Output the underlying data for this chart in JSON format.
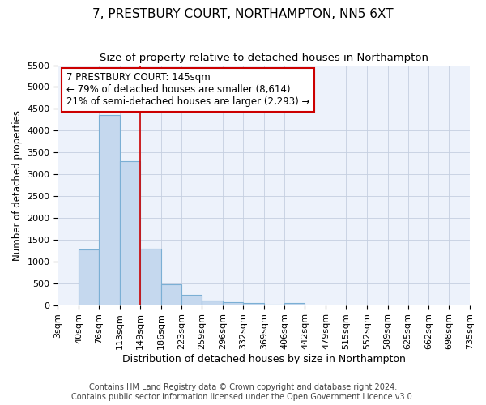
{
  "title": "7, PRESTBURY COURT, NORTHAMPTON, NN5 6XT",
  "subtitle": "Size of property relative to detached houses in Northampton",
  "xlabel": "Distribution of detached houses by size in Northampton",
  "ylabel": "Number of detached properties",
  "footnote1": "Contains HM Land Registry data © Crown copyright and database right 2024.",
  "footnote2": "Contains public sector information licensed under the Open Government Licence v3.0.",
  "property_label": "7 PRESTBURY COURT: 145sqm",
  "annotation_line1": "← 79% of detached houses are smaller (8,614)",
  "annotation_line2": "21% of semi-detached houses are larger (2,293) →",
  "bin_labels": [
    "3sqm",
    "40sqm",
    "76sqm",
    "113sqm",
    "149sqm",
    "186sqm",
    "223sqm",
    "259sqm",
    "296sqm",
    "332sqm",
    "369sqm",
    "406sqm",
    "442sqm",
    "479sqm",
    "515sqm",
    "552sqm",
    "589sqm",
    "625sqm",
    "662sqm",
    "698sqm",
    "735sqm"
  ],
  "bin_edges": [
    3,
    40,
    76,
    113,
    149,
    186,
    223,
    259,
    296,
    332,
    369,
    406,
    442,
    479,
    515,
    552,
    589,
    625,
    662,
    698,
    735
  ],
  "bar_heights": [
    0,
    1275,
    4350,
    3300,
    1300,
    475,
    240,
    100,
    75,
    50,
    20,
    50,
    0,
    0,
    0,
    0,
    0,
    0,
    0,
    0,
    0
  ],
  "bar_color": "#c5d8ee",
  "bar_edge_color": "#7bafd4",
  "vline_x": 149,
  "vline_color": "#cc0000",
  "ylim": [
    0,
    5500
  ],
  "annotation_box_color": "#cc0000",
  "bg_color": "#edf2fb",
  "grid_color": "#c5cfe0",
  "title_fontsize": 11,
  "subtitle_fontsize": 9.5,
  "xlabel_fontsize": 9,
  "ylabel_fontsize": 8.5,
  "tick_fontsize": 8,
  "footnote_fontsize": 7,
  "annot_fontsize": 8.5
}
